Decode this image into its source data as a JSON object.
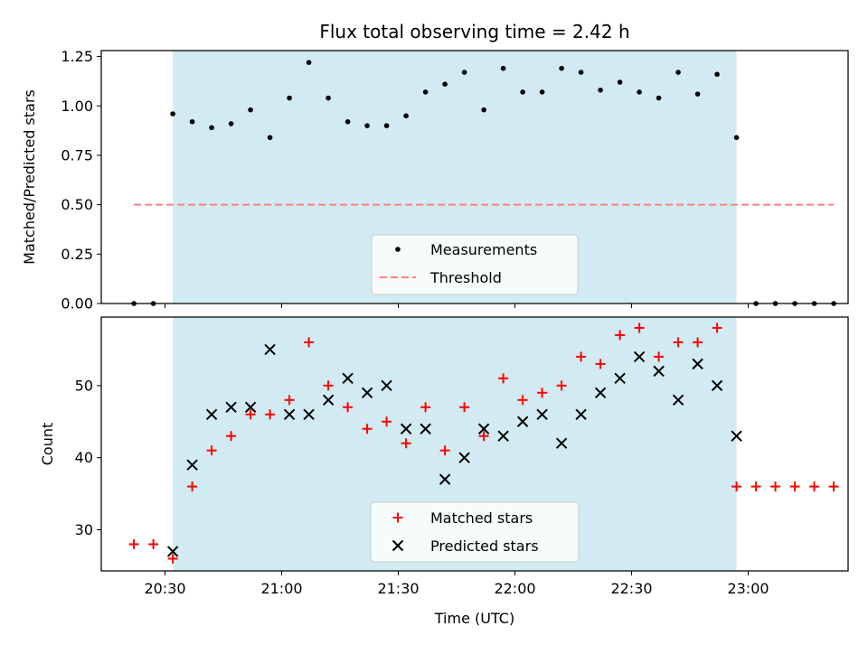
{
  "chart_data": [
    {
      "type": "scatter",
      "title": "Flux total observing time = 2.42 h",
      "xlabel": "",
      "ylabel": "Matched/Predicted stars",
      "ylim": [
        0,
        1.28
      ],
      "yticks": [
        "0.00",
        "0.25",
        "0.50",
        "0.75",
        "1.00",
        "1.25"
      ],
      "ytick_values": [
        0,
        0.25,
        0.5,
        0.75,
        1.0,
        1.25
      ],
      "shaded_region": {
        "start": "20:32",
        "end": "22:57",
        "color": "#add8e6"
      },
      "series": [
        {
          "name": "Measurements",
          "marker": "dot",
          "color": "#000000",
          "x": [
            "20:22",
            "20:27",
            "20:32",
            "20:37",
            "20:42",
            "20:47",
            "20:52",
            "20:57",
            "21:02",
            "21:07",
            "21:12",
            "21:17",
            "21:22",
            "21:27",
            "21:32",
            "21:37",
            "21:42",
            "21:47",
            "21:52",
            "21:57",
            "22:02",
            "22:07",
            "22:12",
            "22:17",
            "22:22",
            "22:27",
            "22:32",
            "22:37",
            "22:42",
            "22:47",
            "22:52",
            "22:57",
            "23:02",
            "23:07",
            "23:12",
            "23:17",
            "23:22"
          ],
          "y": [
            0,
            0,
            0.96,
            0.92,
            0.89,
            0.91,
            0.98,
            0.84,
            1.04,
            1.22,
            1.04,
            0.92,
            0.9,
            0.9,
            0.95,
            1.07,
            1.11,
            1.17,
            0.98,
            1.19,
            1.07,
            1.07,
            1.19,
            1.17,
            1.08,
            1.12,
            1.07,
            1.04,
            1.17,
            1.06,
            1.16,
            0.84,
            0,
            0,
            0,
            0,
            0
          ]
        },
        {
          "name": "Threshold",
          "style": "dashed",
          "color": "#ff7f7f",
          "x": [
            "20:22",
            "23:22"
          ],
          "y": [
            0.5,
            0.5
          ]
        }
      ],
      "legend": {
        "placement": "lower-center",
        "entries": [
          "Measurements",
          "Threshold"
        ]
      }
    },
    {
      "type": "scatter",
      "title": "",
      "xlabel": "Time (UTC)",
      "ylabel": "Count",
      "ylim": [
        24.3,
        59.5
      ],
      "yticks": [
        "30",
        "40",
        "50"
      ],
      "ytick_values": [
        30,
        40,
        50
      ],
      "xticks": [
        "20:30",
        "21:00",
        "21:30",
        "22:00",
        "22:30",
        "23:00"
      ],
      "shaded_region": {
        "start": "20:32",
        "end": "22:57",
        "color": "#add8e6"
      },
      "series": [
        {
          "name": "Matched stars",
          "marker": "plus",
          "color": "#ff0000",
          "x": [
            "20:22",
            "20:27",
            "20:32",
            "20:37",
            "20:42",
            "20:47",
            "20:52",
            "20:57",
            "21:02",
            "21:07",
            "21:12",
            "21:17",
            "21:22",
            "21:27",
            "21:32",
            "21:37",
            "21:42",
            "21:47",
            "21:52",
            "21:57",
            "22:02",
            "22:07",
            "22:12",
            "22:17",
            "22:22",
            "22:27",
            "22:32",
            "22:37",
            "22:42",
            "22:47",
            "22:52",
            "22:57",
            "23:02",
            "23:07",
            "23:12",
            "23:17",
            "23:22"
          ],
          "y": [
            28,
            28,
            26,
            36,
            41,
            43,
            46,
            46,
            48,
            56,
            50,
            47,
            44,
            45,
            42,
            47,
            41,
            47,
            43,
            51,
            48,
            49,
            50,
            54,
            53,
            57,
            58,
            54,
            56,
            56,
            58,
            36,
            36,
            36,
            36,
            36,
            36
          ]
        },
        {
          "name": "Predicted stars",
          "marker": "x",
          "color": "#000000",
          "x": [
            "20:32",
            "20:37",
            "20:42",
            "20:47",
            "20:52",
            "20:57",
            "21:02",
            "21:07",
            "21:12",
            "21:17",
            "21:22",
            "21:27",
            "21:32",
            "21:37",
            "21:42",
            "21:47",
            "21:52",
            "21:57",
            "22:02",
            "22:07",
            "22:12",
            "22:17",
            "22:22",
            "22:27",
            "22:32",
            "22:37",
            "22:42",
            "22:47",
            "22:52",
            "22:57"
          ],
          "y": [
            27,
            39,
            46,
            47,
            47,
            55,
            46,
            46,
            48,
            51,
            49,
            50,
            44,
            44,
            37,
            40,
            44,
            43,
            45,
            46,
            42,
            46,
            49,
            51,
            54,
            52,
            48,
            53,
            50,
            43
          ]
        }
      ],
      "legend": {
        "placement": "lower-center",
        "entries": [
          "Matched stars",
          "Predicted stars"
        ]
      }
    }
  ]
}
